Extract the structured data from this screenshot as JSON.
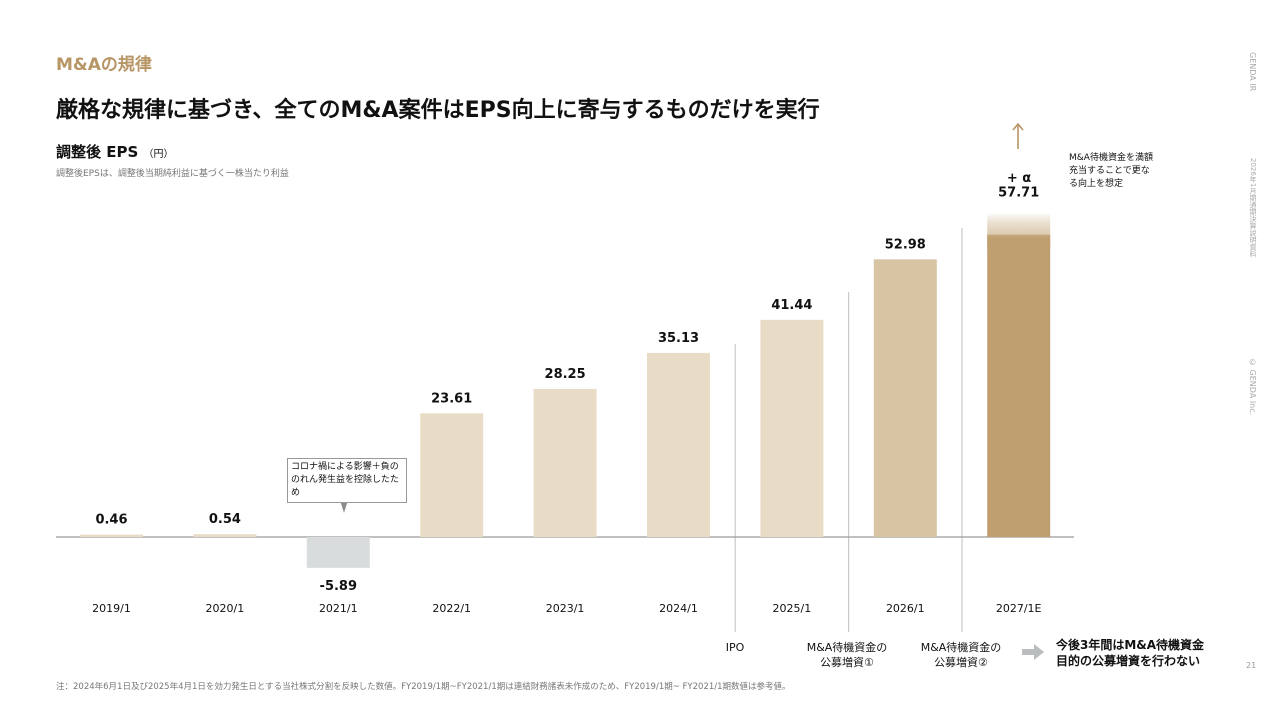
{
  "header": {
    "section_label": "M&Aの規律",
    "title": "厳格な規律に基づき、全てのM&A案件はEPS向上に寄与するものだけを実行",
    "chart_title": "調整後 EPS",
    "chart_unit": "（円）",
    "chart_subtitle": "調整後EPSは、調整後当期純利益に基づく一株当たり利益"
  },
  "sidebar": {
    "brand": "GENDA IR",
    "doc": "2026年1月期通期決算説明資料",
    "copyright": "© GENDA Inc."
  },
  "page_number": "21",
  "footnote": "注：2024年6月1日及び2025年4月1日を効力発生日とする当社株式分割を反映した数値。FY2019/1期~FY2021/1期は連結財務諸表未作成のため、FY2019/1期~ FY2021/1期数値は参考値。",
  "annotations": {
    "covid_note": "コロナ禍による影響＋負ののれん発生益を控除したため",
    "alpha": "+ α",
    "right_note": "M&A待機資金を満額充当することで更なる向上を想定",
    "event_ipo": "IPO",
    "event_raise1_l1": "M&A待機資金の",
    "event_raise1_l2": "公募増資①",
    "event_raise2_l1": "M&A待機資金の",
    "event_raise2_l2": "公募増資②",
    "future_l1": "今後3年間はM&A待機資金",
    "future_l2": "目的の公募増資を行わない"
  },
  "colors": {
    "bar_light": "#e8dcc6",
    "bar_mid": "#d7c4a2",
    "bar_highlight": "#bf9f6f",
    "bar_negative": "#d9dcdd",
    "accent": "#b89565"
  },
  "chart_data": {
    "type": "bar",
    "title": "調整後 EPS",
    "ylabel": "円",
    "categories": [
      "2019/1",
      "2020/1",
      "2021/1",
      "2022/1",
      "2023/1",
      "2024/1",
      "2025/1",
      "2026/1",
      "2027/1"
    ],
    "category_suffix_last": "E",
    "values": [
      0.46,
      0.54,
      -5.89,
      23.61,
      28.25,
      35.13,
      41.44,
      52.98,
      57.71
    ],
    "value_labels": [
      "0.46",
      "0.54",
      "-5.89",
      "23.61",
      "28.25",
      "35.13",
      "41.44",
      "52.98",
      "57.71"
    ],
    "ylim": [
      -6.5,
      58
    ],
    "grid": false,
    "legend": "none"
  }
}
